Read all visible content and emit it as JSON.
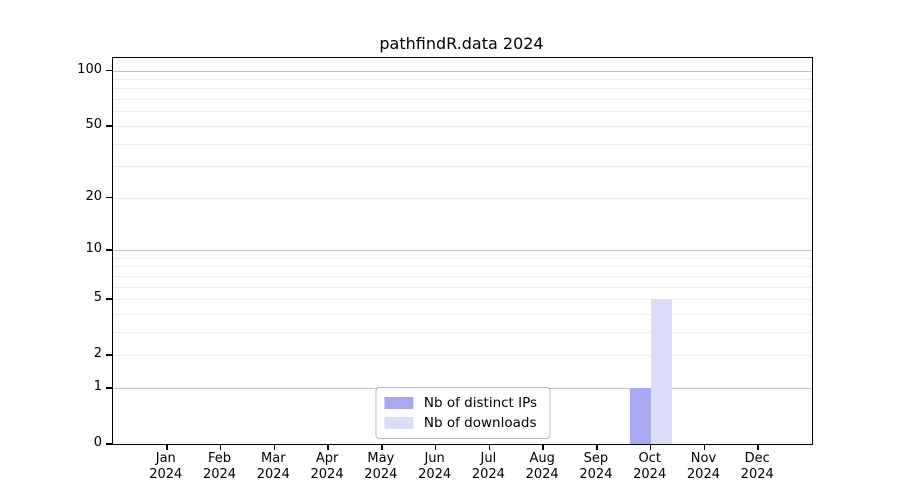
{
  "title": "pathfindR.data 2024",
  "chart_data": {
    "type": "bar",
    "title": "pathfindR.data 2024",
    "categories": [
      "Jan",
      "Feb",
      "Mar",
      "Apr",
      "May",
      "Jun",
      "Jul",
      "Aug",
      "Sep",
      "Oct",
      "Nov",
      "Dec"
    ],
    "category_year": "2024",
    "series": [
      {
        "name": "Nb of distinct IPs",
        "color": "#a9a9f2",
        "values": [
          0,
          0,
          0,
          0,
          0,
          0,
          0,
          0,
          0,
          1,
          0,
          0
        ]
      },
      {
        "name": "Nb of downloads",
        "color": "#dcdcf8",
        "values": [
          0,
          0,
          0,
          0,
          0,
          0,
          0,
          0,
          0,
          5,
          0,
          0
        ]
      }
    ],
    "y_axis": {
      "scale": "log1p",
      "tick_values": [
        0,
        1,
        2,
        5,
        10,
        20,
        50,
        100
      ],
      "tick_labels": [
        "0",
        "1",
        "2",
        "5",
        "10",
        "20",
        "50",
        "100"
      ],
      "major_gridlines": [
        1,
        10,
        100
      ],
      "minor_gridlines": [
        2,
        3,
        4,
        5,
        6,
        7,
        8,
        9,
        20,
        30,
        40,
        50,
        60,
        70,
        80,
        90
      ],
      "limit_top": 117
    },
    "x_axis": {
      "label_format": "month over year"
    },
    "legend": {
      "position": "bottom-center-inside"
    },
    "colors": {
      "major_grid": "#c3c3c3",
      "minor_grid": "#ededed",
      "axis": "#000000",
      "background": "#ffffff"
    },
    "grid": "horizontal-only"
  }
}
